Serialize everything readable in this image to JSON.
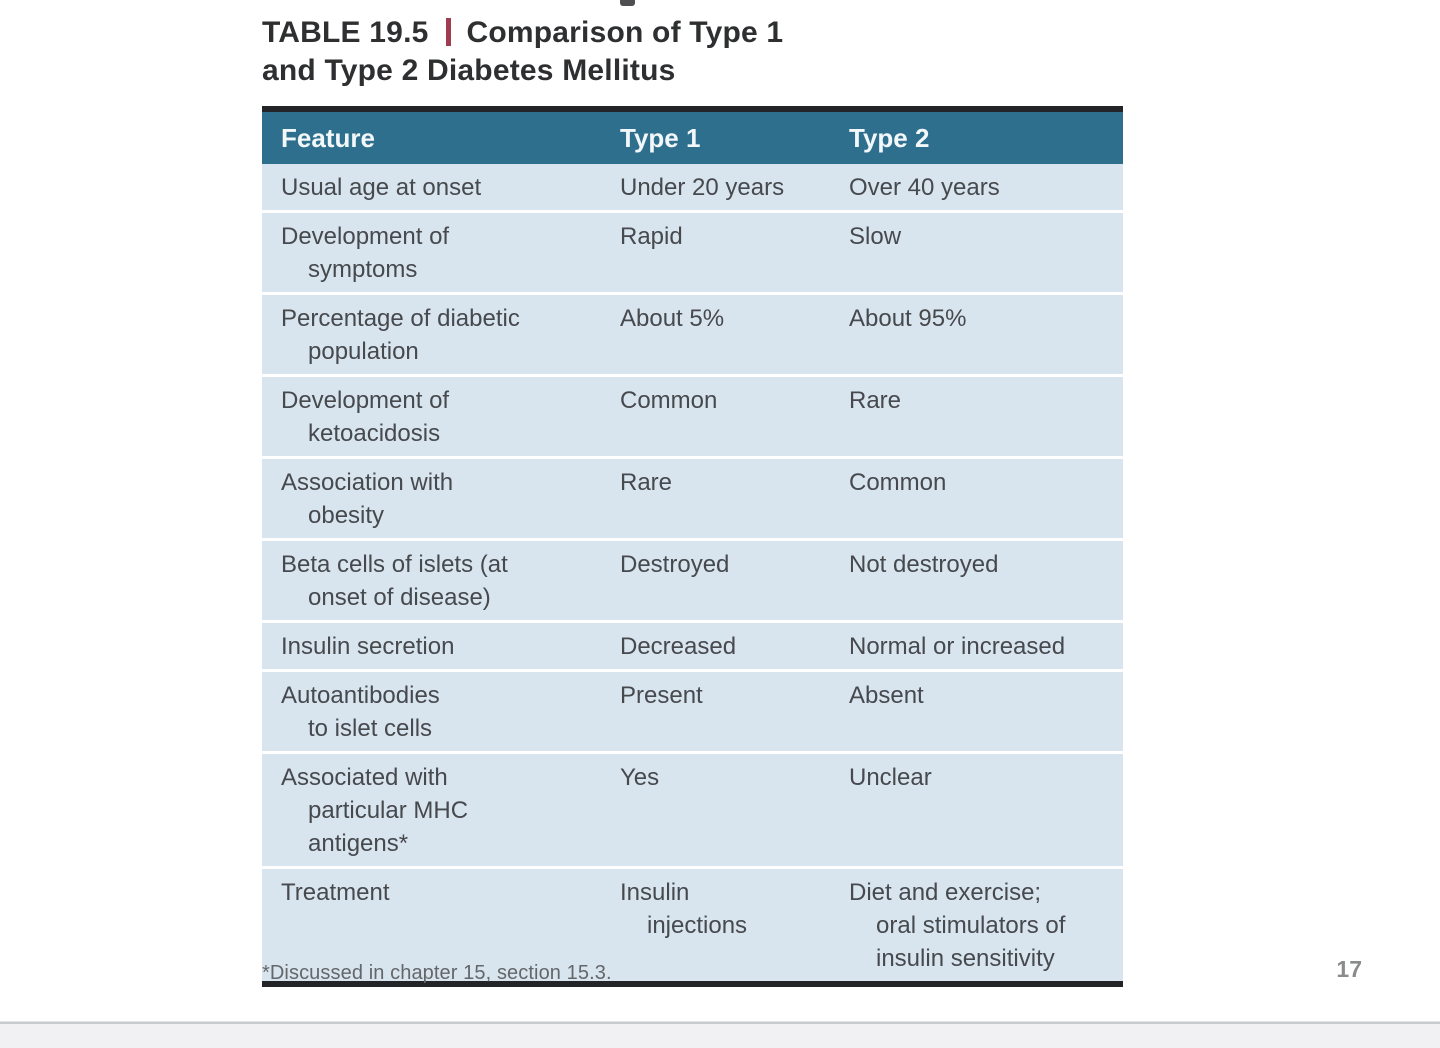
{
  "title": {
    "table_label": "TABLE 19.5",
    "line1_rest": "Comparison of Type 1",
    "line2": "and Type 2 Diabetes Mellitus"
  },
  "table": {
    "headers": [
      "Feature",
      "Type 1",
      "Type 2"
    ],
    "rows": [
      {
        "feature": "Usual age at onset",
        "type1": "Under 20 years",
        "type2": "Over 40 years"
      },
      {
        "feature": "Development of\nsymptoms",
        "type1": "Rapid",
        "type2": "Slow"
      },
      {
        "feature": "Percentage of diabetic\npopulation",
        "type1": "About 5%",
        "type2": "About 95%"
      },
      {
        "feature": "Development of\nketoacidosis",
        "type1": "Common",
        "type2": "Rare"
      },
      {
        "feature": "Association with\nobesity",
        "type1": "Rare",
        "type2": "Common"
      },
      {
        "feature": "Beta cells of islets (at\nonset of disease)",
        "type1": "Destroyed",
        "type2": "Not destroyed"
      },
      {
        "feature": "Insulin secretion",
        "type1": "Decreased",
        "type2": "Normal or increased"
      },
      {
        "feature": "Autoantibodies\nto islet cells",
        "type1": "Present",
        "type2": "Absent"
      },
      {
        "feature": "Associated with\nparticular MHC\nantigens*",
        "type1": "Yes",
        "type2": "Unclear"
      },
      {
        "feature": "Treatment",
        "type1": "Insulin\ninjections",
        "type2": "Diet and exercise;\noral stimulators of\ninsulin sensitivity"
      }
    ]
  },
  "footnote": "*Discussed in chapter 15, section 15.3.",
  "page_number": "17",
  "colors": {
    "header_bg": "#2f6f8e",
    "row_bg": "#d9e5ee",
    "accent_red": "#a03c50",
    "rule_black": "#222427"
  }
}
